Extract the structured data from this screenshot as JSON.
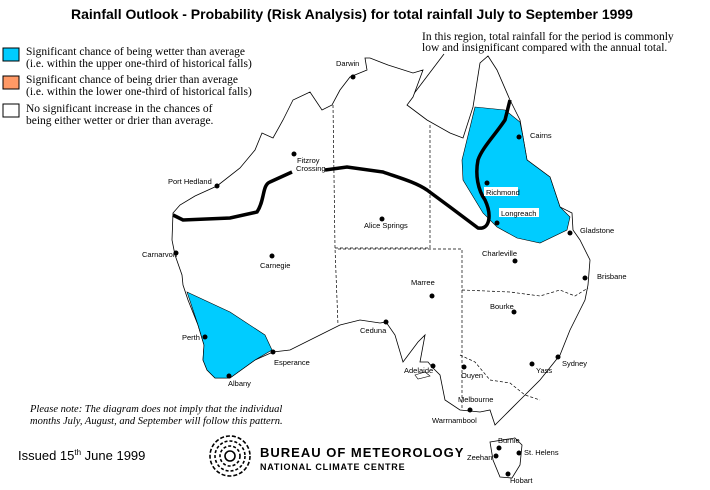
{
  "title": "Rainfall Outlook - Probability (Risk Analysis) for total rainfall July to September 1999",
  "colors": {
    "wetter": "#00ccff",
    "drier": "#ff9966",
    "neutral": "#ffffff",
    "line": "#000000"
  },
  "legend": [
    {
      "line1": "Significant chance of being wetter than average",
      "line2": "(i.e. within the upper one-third of historical falls)"
    },
    {
      "line1": "Significant chance of being drier than average",
      "line2": "(i.e. within the lower one-third of historical falls)"
    },
    {
      "line1": "No significant increase in the chances of",
      "line2": "being either wetter or drier than average."
    }
  ],
  "region_note": {
    "line1": "In this region, total rainfall for the period is commonly",
    "line2": "low and insignificant compared with the annual total."
  },
  "disclaimer": {
    "line1": "Please note: The diagram does not imply that the individual",
    "line2": "months July, August, and September will follow this pattern."
  },
  "issued": {
    "prefix": "Issued 15",
    "sup": "th",
    "suffix": " June 1999"
  },
  "logo": {
    "line1": "BUREAU OF METEOROLOGY",
    "line2": "NATIONAL CLIMATE CENTRE"
  },
  "cities": {
    "darwin": "Darwin",
    "cairns": "Cairns",
    "fitzroy1": "Fitzroy",
    "fitzroy2": "Crossing",
    "port_hedland": "Port Hedland",
    "richmond": "Richmond",
    "longreach": "Longreach",
    "alice_springs": "Alice Springs",
    "gladstone": "Gladstone",
    "carnarvon": "Carnarvon",
    "carnegie": "Carnegie",
    "charleville": "Charleville",
    "brisbane": "Brisbane",
    "marree": "Marree",
    "bourke": "Bourke",
    "ceduna": "Ceduna",
    "perth": "Perth",
    "esperance": "Esperance",
    "sydney": "Sydney",
    "yass": "Yass",
    "adelaide": "Adelaide",
    "ouyen": "Ouyen",
    "albany": "Albany",
    "melbourne": "Melbourne",
    "warrnambool": "Warrnambool",
    "burnie": "Burnie",
    "zeehan": "Zeehan",
    "st_helens": "St. Helens",
    "hobart": "Hobart"
  }
}
